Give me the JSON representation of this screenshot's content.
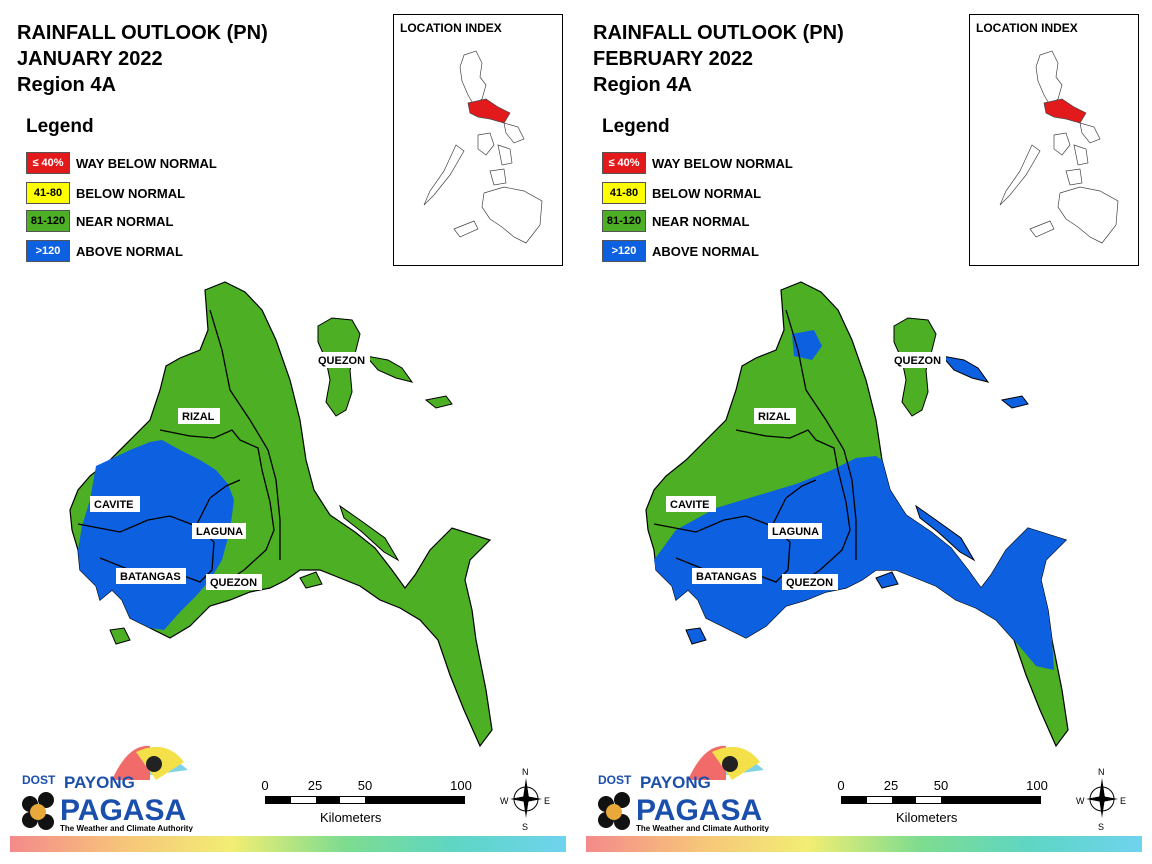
{
  "panels": [
    {
      "title_line1": "RAINFALL OUTLOOK (PN)",
      "title_line2": "JANUARY 2022",
      "title_line3": "Region 4A",
      "regions": [
        "QUEZON",
        "RIZAL",
        "CAVITE",
        "LAGUNA",
        "BATANGAS",
        "QUEZON"
      ],
      "blue_coverage": "western-central"
    },
    {
      "title_line1": "RAINFALL OUTLOOK (PN)",
      "title_line2": "FEBRUARY 2022",
      "title_line3": "Region 4A",
      "regions": [
        "QUEZON",
        "RIZAL",
        "CAVITE",
        "LAGUNA",
        "BATANGAS",
        "QUEZON"
      ],
      "blue_coverage": "southern-majority"
    }
  ],
  "legend": {
    "title": "Legend",
    "items": [
      {
        "code": "≤ 40%",
        "label": "WAY BELOW NORMAL",
        "color": "#e31a1c",
        "text_color": "#ffffff"
      },
      {
        "code": "41-80",
        "label": "BELOW NORMAL",
        "color": "#ffff00",
        "text_color": "#000000"
      },
      {
        "code": "81-120",
        "label": "NEAR NORMAL",
        "color": "#4caf24",
        "text_color": "#000000"
      },
      {
        "code": ">120",
        "label": "ABOVE NORMAL",
        "color": "#0d61e0",
        "text_color": "#ffffff"
      }
    ]
  },
  "inset": {
    "title": "LOCATION INDEX",
    "highlight_color": "#e31a1c"
  },
  "logo": {
    "dost": "DOST",
    "payong": "PAYONG",
    "pagasa": "PAGASA",
    "tagline": "The Weather and Climate Authority"
  },
  "scale": {
    "ticks": [
      "0",
      "25",
      "50",
      "100"
    ],
    "unit": "Kilometers"
  },
  "compass": {
    "n": "N",
    "s": "S",
    "e": "E",
    "w": "W"
  },
  "colors": {
    "near_normal": "#4caf24",
    "above_normal": "#0d61e0",
    "outline": "#000000"
  }
}
